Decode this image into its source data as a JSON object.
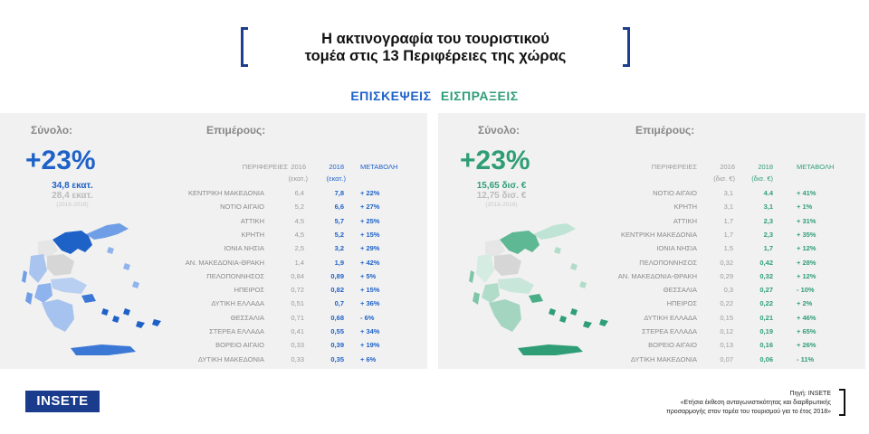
{
  "title": {
    "line1": "Η ακτινογραφία του τουριστικού",
    "line2": "τομέα στις 13 Περιφέρειες της χώρας"
  },
  "tabs": {
    "visits": "ΕΠΙΣΚΕΨΕΙΣ",
    "receipts": "ΕΙΣΠΡΑΞΕΙΣ"
  },
  "colors": {
    "visits_accent": "#1e62c8",
    "receipts_accent": "#2f9e76",
    "brand": "#1b3c8c"
  },
  "chart_data": [
    {
      "type": "table",
      "title": "ΕΠΙΣΚΕΨΕΙΣ",
      "total_label": "Σύνολο:",
      "breakdown_label": "Επιμέρους:",
      "total_change": "+23%",
      "total_2018": "34,8 εκατ.",
      "total_2016": "28,4 εκατ.",
      "period": "(2016-2018)",
      "columns": [
        "ΠΕΡΙΦΕΡΕΙΕΣ",
        "2016",
        "2018",
        "ΜΕΤΑΒΟΛΗ"
      ],
      "units": {
        "y1": "(εκατ.)",
        "y2": "(εκατ.)"
      },
      "rows": [
        {
          "region": "ΚΕΝΤΡΙΚΗ ΜΑΚΕΔΟΝΙΑ",
          "y2016": "6,4",
          "y2018": "7,8",
          "change": "+ 22%"
        },
        {
          "region": "ΝΟΤΙΟ ΑΙΓΑΙΟ",
          "y2016": "5,2",
          "y2018": "6,6",
          "change": "+ 27%"
        },
        {
          "region": "ΑΤΤΙΚΗ",
          "y2016": "4,5",
          "y2018": "5,7",
          "change": "+ 25%"
        },
        {
          "region": "ΚΡΗΤΗ",
          "y2016": "4,5",
          "y2018": "5,2",
          "change": "+ 15%"
        },
        {
          "region": "ΙΟΝΙΑ ΝΗΣΙΑ",
          "y2016": "2,5",
          "y2018": "3,2",
          "change": "+ 29%"
        },
        {
          "region": "ΑΝ. ΜΑΚΕΔΟΝΙΑ-ΘΡΑΚΗ",
          "y2016": "1,4",
          "y2018": "1,9",
          "change": "+ 42%"
        },
        {
          "region": "ΠΕΛΟΠΟΝΝΗΣΟΣ",
          "y2016": "0,84",
          "y2018": "0,89",
          "change": "+ 5%"
        },
        {
          "region": "ΗΠΕΙΡΟΣ",
          "y2016": "0,72",
          "y2018": "0,82",
          "change": "+ 15%"
        },
        {
          "region": "ΔΥΤΙΚΗ ΕΛΛΑΔΑ",
          "y2016": "0,51",
          "y2018": "0,7",
          "change": "+ 36%"
        },
        {
          "region": "ΘΕΣΣΑΛΙΑ",
          "y2016": "0,71",
          "y2018": "0,68",
          "change": "- 6%"
        },
        {
          "region": "ΣΤΕΡΕΑ ΕΛΛΑΔΑ",
          "y2016": "0,41",
          "y2018": "0,55",
          "change": "+ 34%"
        },
        {
          "region": "ΒΟΡΕΙΟ ΑΙΓΑΙΟ",
          "y2016": "0,33",
          "y2018": "0,39",
          "change": "+ 19%"
        },
        {
          "region": "ΔΥΤΙΚΗ ΜΑΚΕΔΟΝΙΑ",
          "y2016": "0,33",
          "y2018": "0,35",
          "change": "+ 6%"
        }
      ]
    },
    {
      "type": "table",
      "title": "ΕΙΣΠΡΑΞΕΙΣ",
      "total_label": "Σύνολο:",
      "breakdown_label": "Επιμέρους:",
      "total_change": "+23%",
      "total_2018": "15,65 δισ. €",
      "total_2016": "12,75 δισ. €",
      "period": "(2016-2018)",
      "columns": [
        "ΠΕΡΙΦΕΡΕΙΕΣ",
        "2016",
        "2018",
        "ΜΕΤΑΒΟΛΗ"
      ],
      "units": {
        "y1": "(δισ. €)",
        "y2": "(δισ. €)"
      },
      "rows": [
        {
          "region": "ΝΟΤΙΟ ΑΙΓΑΙΟ",
          "y2016": "3,1",
          "y2018": "4.4",
          "change": "+ 41%"
        },
        {
          "region": "ΚΡΗΤΗ",
          "y2016": "3,1",
          "y2018": "3,1",
          "change": "+ 1%"
        },
        {
          "region": "ΑΤΤΙΚΗ",
          "y2016": "1,7",
          "y2018": "2,3",
          "change": "+ 31%"
        },
        {
          "region": "ΚΕΝΤΡΙΚΗ ΜΑΚΕΔΟΝΙΑ",
          "y2016": "1,7",
          "y2018": "2,3",
          "change": "+ 35%"
        },
        {
          "region": "ΙΟΝΙΑ ΝΗΣΙΑ",
          "y2016": "1,5",
          "y2018": "1,7",
          "change": "+ 12%"
        },
        {
          "region": "ΠΕΛΟΠΟΝΝΗΣΟΣ",
          "y2016": "0,32",
          "y2018": "0,42",
          "change": "+ 28%"
        },
        {
          "region": "ΑΝ. ΜΑΚΕΔΟΝΙΑ-ΘΡΑΚΗ",
          "y2016": "0,29",
          "y2018": "0,32",
          "change": "+ 12%"
        },
        {
          "region": "ΘΕΣΣΑΛΙΑ",
          "y2016": "0,3",
          "y2018": "0,27",
          "change": "- 10%"
        },
        {
          "region": "ΗΠΕΙΡΟΣ",
          "y2016": "0,22",
          "y2018": "0,22",
          "change": "+ 2%"
        },
        {
          "region": "ΔΥΤΙΚΗ ΕΛΛΑΔΑ",
          "y2016": "0,15",
          "y2018": "0,21",
          "change": "+ 46%"
        },
        {
          "region": "ΣΤΕΡΕΑ ΕΛΛΑΔΑ",
          "y2016": "0,12",
          "y2018": "0,19",
          "change": "+ 65%"
        },
        {
          "region": "ΒΟΡΕΙΟ ΑΙΓΑΙΟ",
          "y2016": "0,13",
          "y2018": "0,16",
          "change": "+ 26%"
        },
        {
          "region": "ΔΥΤΙΚΗ ΜΑΚΕΔΟΝΙΑ",
          "y2016": "0,07",
          "y2018": "0,06",
          "change": "- 11%"
        }
      ]
    }
  ],
  "footer": {
    "logo_main": "INSETE",
    "source_line1": "Πηγή: INSETE",
    "source_line2": "«Ετήσια έκθεση ανταγωνιστικότητας και διαρθρωτικής",
    "source_line3": "προσαρμογής στον τομέα του τουρισμού για το έτος 2018»"
  }
}
